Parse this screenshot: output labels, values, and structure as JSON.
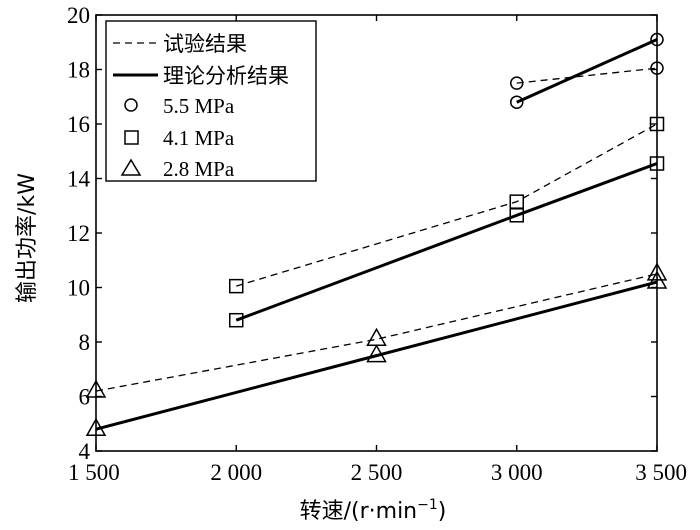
{
  "chart_data": {
    "type": "line",
    "xlabel": "转速/(r·min",
    "xlabel_sup": "−1",
    "xlabel_close": ")",
    "ylabel": "输出功率/kW",
    "xlim": [
      1500,
      3500
    ],
    "ylim": [
      4,
      20
    ],
    "x_ticks": [
      1500,
      2000,
      2500,
      3000,
      3500
    ],
    "x_tick_labels": [
      "1 500",
      "2 000",
      "2 500",
      "3 000",
      "3 500"
    ],
    "y_ticks": [
      4,
      6,
      8,
      10,
      12,
      14,
      16,
      18,
      20
    ],
    "y_tick_labels": [
      "4",
      "6",
      "8",
      "10",
      "12",
      "14",
      "16",
      "18",
      "20"
    ],
    "grid": false,
    "legend_position": "top-left",
    "legend": {
      "line_entries": [
        {
          "label": "试验结果",
          "style": "dashed"
        },
        {
          "label": "理论分析结果",
          "style": "solid"
        }
      ],
      "marker_entries": [
        {
          "label": "5.5 MPa",
          "marker": "circle"
        },
        {
          "label": "4.1 MPa",
          "marker": "square"
        },
        {
          "label": "2.8 MPa",
          "marker": "triangle"
        }
      ]
    },
    "series": [
      {
        "pressure": "5.5 MPa",
        "kind": "试验结果",
        "style": "dashed",
        "marker": "circle",
        "x": [
          3000,
          3500
        ],
        "y": [
          17.5,
          18.05
        ]
      },
      {
        "pressure": "5.5 MPa",
        "kind": "理论分析结果",
        "style": "solid",
        "marker": "circle",
        "x": [
          3000,
          3500
        ],
        "y": [
          16.8,
          19.1
        ]
      },
      {
        "pressure": "4.1 MPa",
        "kind": "试验结果",
        "style": "dashed",
        "marker": "square",
        "x": [
          2000,
          3000,
          3500
        ],
        "y": [
          10.05,
          13.15,
          16.0
        ]
      },
      {
        "pressure": "4.1 MPa",
        "kind": "理论分析结果",
        "style": "solid",
        "marker": "square",
        "x": [
          2000,
          3000,
          3500
        ],
        "y": [
          8.8,
          12.65,
          14.55
        ]
      },
      {
        "pressure": "2.8 MPa",
        "kind": "试验结果",
        "style": "dashed",
        "marker": "triangle",
        "x": [
          1500,
          2500,
          3500
        ],
        "y": [
          6.2,
          8.1,
          10.5
        ]
      },
      {
        "pressure": "2.8 MPa",
        "kind": "理论分析结果",
        "style": "solid",
        "marker": "triangle",
        "x": [
          1500,
          2500,
          3500
        ],
        "y": [
          4.8,
          7.5,
          10.2
        ]
      }
    ]
  }
}
